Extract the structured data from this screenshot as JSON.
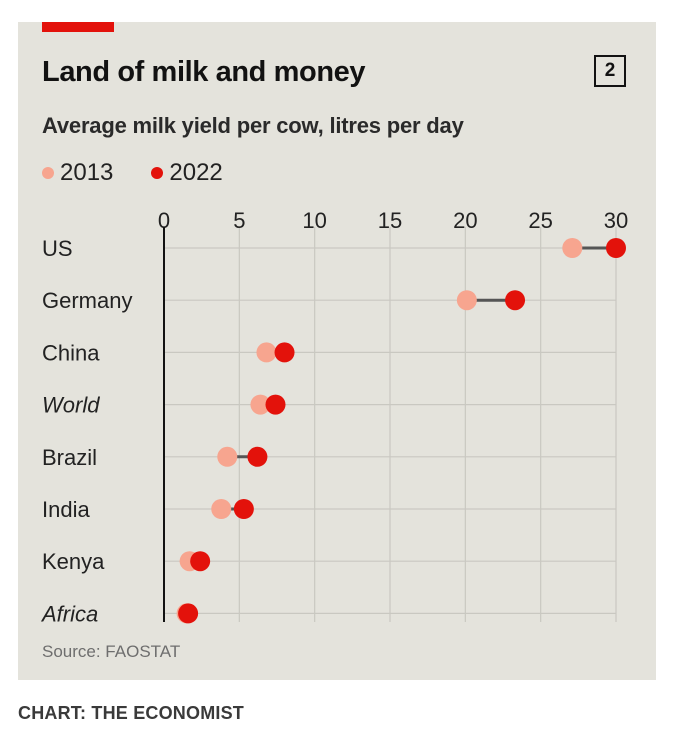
{
  "chart_data": {
    "type": "dot-range",
    "title": "Land of milk and money",
    "subtitle": "Average milk yield per cow, litres per day",
    "chart_number": "2",
    "xlim": [
      0,
      30
    ],
    "x_ticks": [
      0,
      5,
      10,
      15,
      20,
      25,
      30
    ],
    "x_tick_labels": [
      "0",
      "5",
      "10",
      "15",
      "20",
      "25",
      "30"
    ],
    "series": [
      {
        "name": "2013",
        "color": "#f7a58f"
      },
      {
        "name": "2022",
        "color": "#e3120b"
      }
    ],
    "categories": [
      {
        "label": "US",
        "italic": false,
        "v2013": 27.1,
        "v2022": 30.0
      },
      {
        "label": "Germany",
        "italic": false,
        "v2013": 20.1,
        "v2022": 23.3
      },
      {
        "label": "China",
        "italic": false,
        "v2013": 6.8,
        "v2022": 8.0
      },
      {
        "label": "World",
        "italic": true,
        "v2013": 6.4,
        "v2022": 7.4
      },
      {
        "label": "Brazil",
        "italic": false,
        "v2013": 4.2,
        "v2022": 6.2
      },
      {
        "label": "India",
        "italic": false,
        "v2013": 3.8,
        "v2022": 5.3
      },
      {
        "label": "Kenya",
        "italic": false,
        "v2013": 1.7,
        "v2022": 2.4
      },
      {
        "label": "Africa",
        "italic": true,
        "v2013": 1.5,
        "v2022": 1.6
      }
    ],
    "source": "Source: FAOSTAT"
  },
  "credit": "CHART: THE ECONOMIST",
  "colors": {
    "panel": "#e4e3dc",
    "accent_red": "#e3120b",
    "light": "#f7a58f",
    "grid": "#c9c8c1",
    "connector": "#555555",
    "axis": "#121212"
  }
}
